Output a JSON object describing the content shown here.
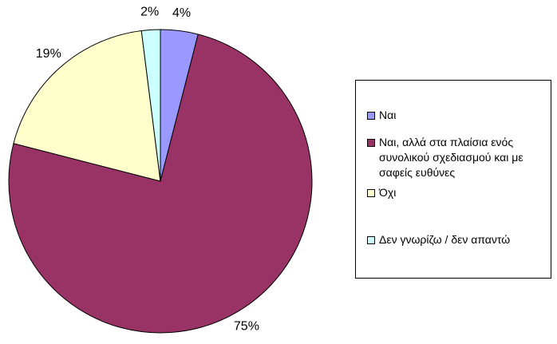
{
  "chart_data": {
    "type": "pie",
    "categories": [
      "Ναι",
      "Ναι, αλλά στα πλαίσια ενός συνολικού σχεδιασμού και με σαφείς ευθύνες",
      "Όχι",
      "Δεν γνωρίζω / δεν απαντώ"
    ],
    "values": [
      4,
      75,
      19,
      2
    ],
    "value_labels": [
      "4%",
      "75%",
      "19%",
      "2%"
    ],
    "colors": [
      "#9999ff",
      "#993366",
      "#ffffcc",
      "#ccffff"
    ],
    "legend": "right"
  }
}
